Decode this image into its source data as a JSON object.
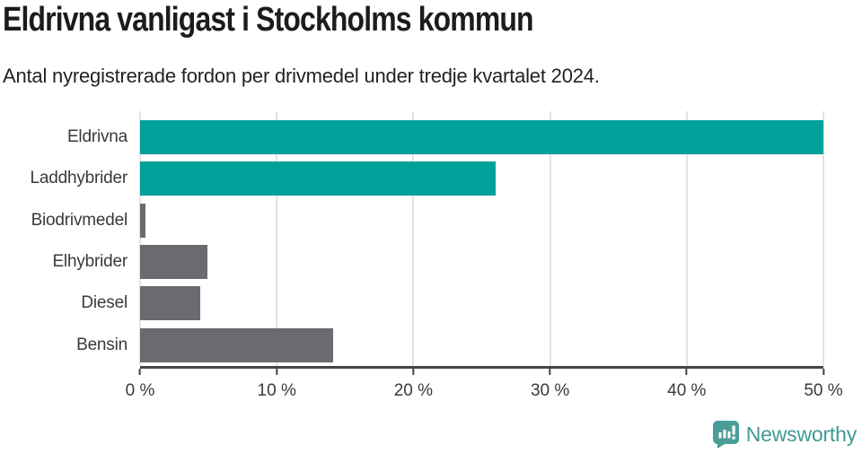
{
  "header": {
    "title": "Eldrivna vanligast i Stockholms kommun",
    "subtitle": "Antal nyregistrerade fordon per drivmedel under tredje kvartalet 2024."
  },
  "colors": {
    "teal_bar": "#00a09b",
    "gray_bar": "#6b6a70",
    "gridline": "#e3e3e3",
    "axis": "#454545",
    "title_text": "#1c1c1c",
    "label_text": "#3a3a3a",
    "logo_teal": "#4b9e98"
  },
  "chart_data": {
    "type": "bar",
    "orientation": "horizontal",
    "title": "Eldrivna vanligast i Stockholms kommun",
    "subtitle": "Antal nyregistrerade fordon per drivmedel under tredje kvartalet 2024.",
    "categories": [
      "Eldrivna",
      "Laddhybrider",
      "Biodrivmedel",
      "Elhybrider",
      "Diesel",
      "Bensin"
    ],
    "values": [
      50.2,
      26.0,
      0.4,
      4.9,
      4.4,
      14.1
    ],
    "unit": "%",
    "bar_colors": [
      "#00a09b",
      "#00a09b",
      "#6b6a70",
      "#6b6a70",
      "#6b6a70",
      "#6b6a70"
    ],
    "xlim": [
      0,
      50
    ],
    "xticks": [
      {
        "value": 0,
        "label": "0 %"
      },
      {
        "value": 10,
        "label": "10 %"
      },
      {
        "value": 20,
        "label": "20 %"
      },
      {
        "value": 30,
        "label": "30 %"
      },
      {
        "value": 40,
        "label": "40 %"
      },
      {
        "value": 50,
        "label": "50 %"
      }
    ],
    "grid": "vertical",
    "legend": "none"
  },
  "footer": {
    "brand": "Newsworthy"
  }
}
